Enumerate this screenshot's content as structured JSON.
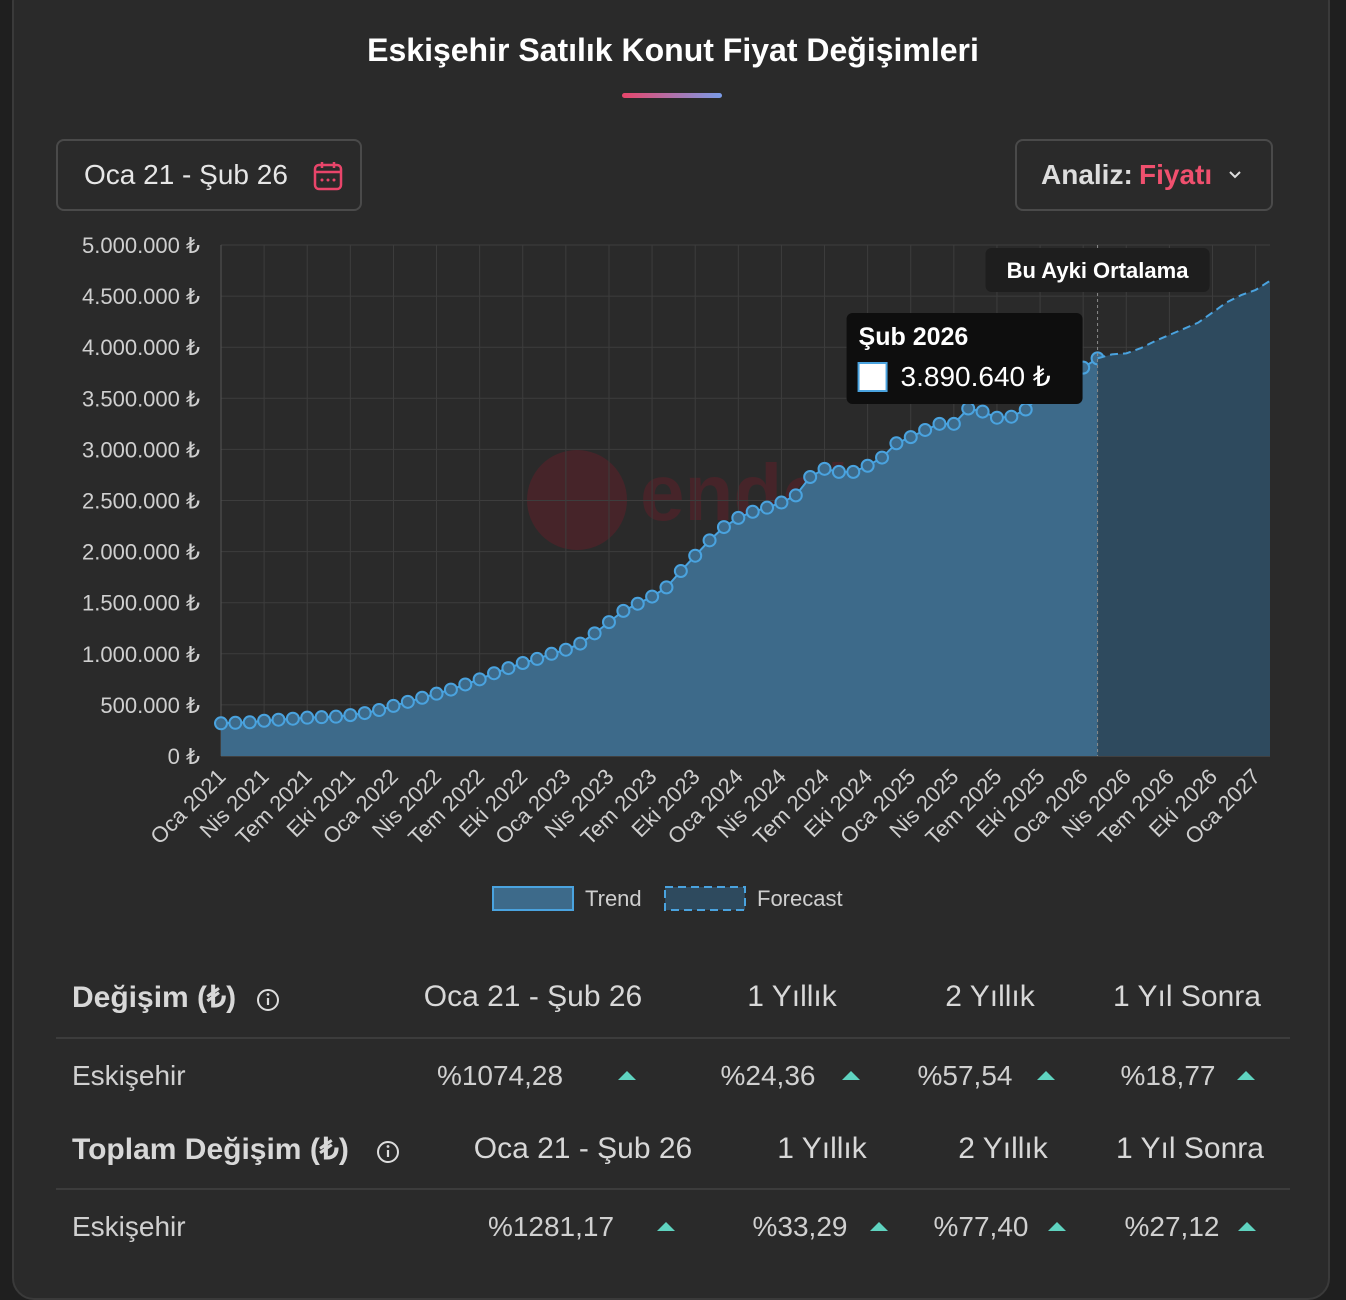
{
  "header": {
    "title": "Eskişehir Satılık Konut Fiyat Değişimleri",
    "date_range": "Oca 21 - Şub 26",
    "analysis_label": "Analiz:",
    "analysis_value": "Fiyatı"
  },
  "chart_data": {
    "type": "area",
    "categories": [
      "Oca 2021",
      null,
      null,
      "Nis 2021",
      null,
      null,
      "Tem 2021",
      null,
      null,
      "Eki 2021",
      null,
      null,
      "Oca 2022",
      null,
      null,
      "Nis 2022",
      null,
      null,
      "Tem 2022",
      null,
      null,
      "Eki 2022",
      null,
      null,
      "Oca 2023",
      null,
      null,
      "Nis 2023",
      null,
      null,
      "Tem 2023",
      null,
      null,
      "Eki 2023",
      null,
      null,
      "Oca 2024",
      null,
      null,
      "Nis 2024",
      null,
      null,
      "Tem 2024",
      null,
      null,
      "Eki 2024",
      null,
      null,
      "Oca 2025",
      null,
      null,
      "Nis 2025",
      null,
      null,
      "Tem 2025",
      null,
      null,
      "Eki 2025",
      null,
      null,
      "Oca 2026",
      null,
      null,
      "Nis 2026",
      null,
      null,
      "Tem 2026",
      null,
      null,
      "Eki 2026",
      null,
      null,
      "Oca 2027",
      null
    ],
    "series": [
      {
        "name": "Trend",
        "color": "#4aa3df",
        "fill": "#3d6a8a",
        "values": [
          320000,
          325000,
          330000,
          345000,
          355000,
          365000,
          375000,
          380000,
          385000,
          400000,
          420000,
          450000,
          490000,
          530000,
          570000,
          610000,
          650000,
          700000,
          750000,
          810000,
          860000,
          910000,
          950000,
          1000000,
          1040000,
          1100000,
          1200000,
          1310000,
          1420000,
          1490000,
          1560000,
          1650000,
          1810000,
          1960000,
          2110000,
          2240000,
          2330000,
          2390000,
          2430000,
          2480000,
          2550000,
          2730000,
          2810000,
          2780000,
          2780000,
          2840000,
          2920000,
          3060000,
          3120000,
          3190000,
          3250000,
          3250000,
          3400000,
          3370000,
          3310000,
          3320000,
          3390000,
          3530000,
          3600000,
          3680000,
          3800000,
          3890640,
          null,
          null,
          null,
          null,
          null,
          null,
          null,
          null,
          null,
          null,
          null,
          null
        ]
      },
      {
        "name": "Forecast",
        "color": "#4aa3df",
        "fill": "#2e4a5e",
        "values": [
          null,
          null,
          null,
          null,
          null,
          null,
          null,
          null,
          null,
          null,
          null,
          null,
          null,
          null,
          null,
          null,
          null,
          null,
          null,
          null,
          null,
          null,
          null,
          null,
          null,
          null,
          null,
          null,
          null,
          null,
          null,
          null,
          null,
          null,
          null,
          null,
          null,
          null,
          null,
          null,
          null,
          null,
          null,
          null,
          null,
          null,
          null,
          null,
          null,
          null,
          null,
          null,
          null,
          null,
          null,
          null,
          null,
          null,
          null,
          null,
          null,
          3890640,
          3930000,
          3940000,
          3990000,
          4060000,
          4120000,
          4180000,
          4240000,
          4340000,
          4440000,
          4510000,
          4560000,
          4650000
        ]
      }
    ],
    "ylim": [
      0,
      5000000
    ],
    "yticks": [
      {
        "value": 0,
        "label": "0 ₺"
      },
      {
        "value": 500000,
        "label": "500.000 ₺"
      },
      {
        "value": 1000000,
        "label": "1.000.000 ₺"
      },
      {
        "value": 1500000,
        "label": "1.500.000 ₺"
      },
      {
        "value": 2000000,
        "label": "2.000.000 ₺"
      },
      {
        "value": 2500000,
        "label": "2.500.000 ₺"
      },
      {
        "value": 3000000,
        "label": "3.000.000 ₺"
      },
      {
        "value": 3500000,
        "label": "3.500.000 ₺"
      },
      {
        "value": 4000000,
        "label": "4.000.000 ₺"
      },
      {
        "value": 4500000,
        "label": "4.500.000 ₺"
      },
      {
        "value": 5000000,
        "label": "5.000.000 ₺"
      }
    ],
    "grid": true,
    "annotation": "Bu Ayki Ortalama",
    "tooltip": {
      "title": "Şub 2026",
      "label": "3.890.640 ₺"
    },
    "watermark": "endeksa"
  },
  "tables": [
    {
      "header": [
        "Değişim (₺)",
        "Oca 21 - Şub 26",
        "1 Yıllık",
        "2 Yıllık",
        "1 Yıl Sonra"
      ],
      "rows": [
        [
          "Eskişehir",
          "%1074,28",
          "%24,36",
          "%57,54",
          "%18,77"
        ]
      ]
    },
    {
      "header": [
        "Toplam Değişim (₺)",
        "Oca 21 - Şub 26",
        "1 Yıllık",
        "2 Yıllık",
        "1 Yıl Sonra"
      ],
      "rows": [
        [
          "Eskişehir",
          "%1281,17",
          "%33,29",
          "%77,40",
          "%27,12"
        ]
      ]
    }
  ]
}
